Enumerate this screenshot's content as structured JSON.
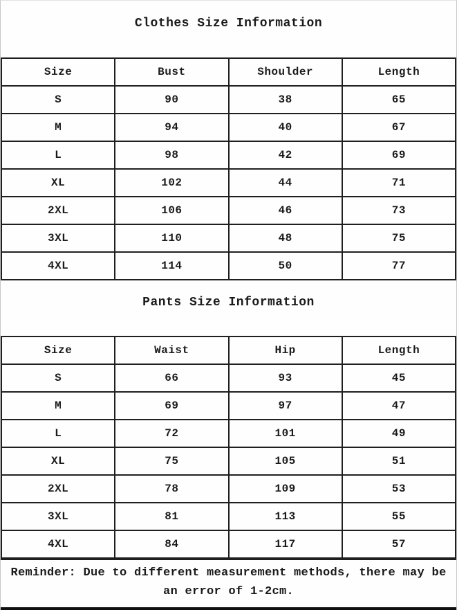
{
  "clothes_section": {
    "title": "Clothes Size Information",
    "columns": [
      "Size",
      "Bust",
      "Shoulder",
      "Length"
    ],
    "rows": [
      [
        "S",
        "90",
        "38",
        "65"
      ],
      [
        "M",
        "94",
        "40",
        "67"
      ],
      [
        "L",
        "98",
        "42",
        "69"
      ],
      [
        "XL",
        "102",
        "44",
        "71"
      ],
      [
        "2XL",
        "106",
        "46",
        "73"
      ],
      [
        "3XL",
        "110",
        "48",
        "75"
      ],
      [
        "4XL",
        "114",
        "50",
        "77"
      ]
    ]
  },
  "pants_section": {
    "title": "Pants Size Information",
    "columns": [
      "Size",
      "Waist",
      "Hip",
      "Length"
    ],
    "rows": [
      [
        "S",
        "66",
        "93",
        "45"
      ],
      [
        "M",
        "69",
        "97",
        "47"
      ],
      [
        "L",
        "72",
        "101",
        "49"
      ],
      [
        "XL",
        "75",
        "105",
        "51"
      ],
      [
        "2XL",
        "78",
        "109",
        "53"
      ],
      [
        "3XL",
        "81",
        "113",
        "55"
      ],
      [
        "4XL",
        "84",
        "117",
        "57"
      ]
    ]
  },
  "reminder": {
    "line1": "Reminder: Due to different measurement methods, there may be",
    "line2": "an error of 1-2cm."
  },
  "colors": {
    "text": "#1a1a1a",
    "border": "#1f1f1f",
    "background": "#fefefe"
  }
}
